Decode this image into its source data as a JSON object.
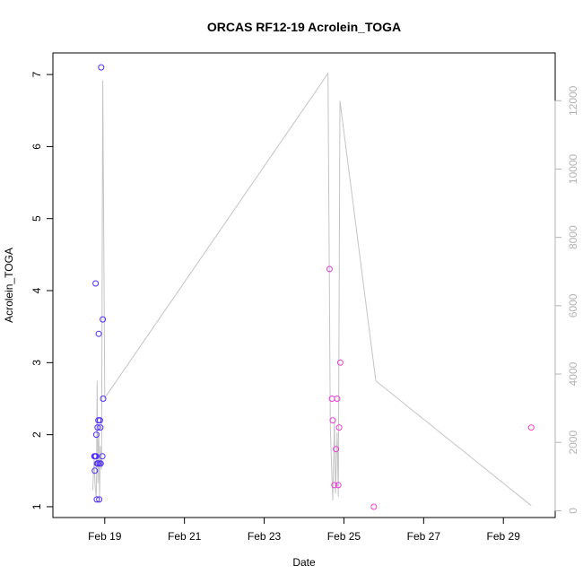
{
  "chart_data": {
    "type": "scatter",
    "title": "ORCAS RF12-19 Acrolein_TOGA",
    "xlabel": "Date",
    "ylabel": "Acrolein_TOGA",
    "ylim": [
      0.85,
      7.3
    ],
    "y_ticks": [
      1,
      2,
      3,
      4,
      5,
      6,
      7
    ],
    "x_range_days_feb": [
      17.7,
      30.3
    ],
    "x_ticks": [
      {
        "day": 19,
        "label": "Feb 19"
      },
      {
        "day": 21,
        "label": "Feb 21"
      },
      {
        "day": 23,
        "label": "Feb 23"
      },
      {
        "day": 25,
        "label": "Feb 25"
      },
      {
        "day": 27,
        "label": "Feb 27"
      },
      {
        "day": 29,
        "label": "Feb 29"
      }
    ],
    "y2lim": [
      -200,
      13400
    ],
    "y2_ticks": [
      0,
      2000,
      4000,
      6000,
      8000,
      10000,
      12000
    ],
    "grid": false,
    "colors": {
      "start": "#4b2bff",
      "end": "#ff3fd0",
      "line": "#c4c4c4",
      "axis": "#000000",
      "axis_right": "#b3b3b3"
    },
    "series": [
      {
        "points": [
          {
            "day": 18.74,
            "y": 1.7
          },
          {
            "day": 18.75,
            "y": 1.5
          },
          {
            "day": 18.76,
            "y": 1.7
          },
          {
            "day": 18.77,
            "y": 4.1
          },
          {
            "day": 18.78,
            "y": 1.7
          },
          {
            "day": 18.79,
            "y": 2.0
          },
          {
            "day": 18.8,
            "y": 1.1
          },
          {
            "day": 18.81,
            "y": 1.6
          },
          {
            "day": 18.82,
            "y": 2.1
          },
          {
            "day": 18.83,
            "y": 1.6
          },
          {
            "day": 18.84,
            "y": 2.2
          },
          {
            "day": 18.85,
            "y": 3.4
          },
          {
            "day": 18.86,
            "y": 1.1
          },
          {
            "day": 18.87,
            "y": 1.6
          },
          {
            "day": 18.88,
            "y": 2.2
          },
          {
            "day": 18.89,
            "y": 2.1
          },
          {
            "day": 18.9,
            "y": 1.6
          },
          {
            "day": 18.91,
            "y": 7.1
          },
          {
            "day": 18.94,
            "y": 1.7
          },
          {
            "day": 18.95,
            "y": 3.6
          },
          {
            "day": 18.96,
            "y": 2.5
          },
          {
            "day": 24.64,
            "y": 4.3
          },
          {
            "day": 24.7,
            "y": 2.5
          },
          {
            "day": 24.72,
            "y": 2.2
          },
          {
            "day": 24.76,
            "y": 1.3
          },
          {
            "day": 24.8,
            "y": 1.8
          },
          {
            "day": 24.83,
            "y": 2.5
          },
          {
            "day": 24.86,
            "y": 1.3
          },
          {
            "day": 24.88,
            "y": 2.1
          },
          {
            "day": 24.91,
            "y": 3.0
          },
          {
            "day": 25.75,
            "y": 1.0
          },
          {
            "day": 29.7,
            "y": 2.1
          }
        ]
      },
      {
        "axis": "right",
        "points": [
          {
            "day": 18.7,
            "y2": 600
          },
          {
            "day": 18.73,
            "y2": 1500
          },
          {
            "day": 18.76,
            "y2": 700
          },
          {
            "day": 18.79,
            "y2": 400
          },
          {
            "day": 18.81,
            "y2": 3800
          },
          {
            "day": 18.83,
            "y2": 800
          },
          {
            "day": 18.85,
            "y2": 2300
          },
          {
            "day": 18.87,
            "y2": 400
          },
          {
            "day": 18.89,
            "y2": 1900
          },
          {
            "day": 18.92,
            "y2": 1200
          },
          {
            "day": 18.95,
            "y2": 12600
          },
          {
            "day": 19.0,
            "y2": 3300
          },
          {
            "day": 24.6,
            "y2": 12800
          },
          {
            "day": 24.66,
            "y2": 2400
          },
          {
            "day": 24.72,
            "y2": 300
          },
          {
            "day": 24.76,
            "y2": 2600
          },
          {
            "day": 24.79,
            "y2": 500
          },
          {
            "day": 24.83,
            "y2": 2300
          },
          {
            "day": 24.86,
            "y2": 400
          },
          {
            "day": 24.9,
            "y2": 12000
          },
          {
            "day": 25.8,
            "y2": 3800
          },
          {
            "day": 29.7,
            "y2": 150
          }
        ]
      }
    ]
  }
}
